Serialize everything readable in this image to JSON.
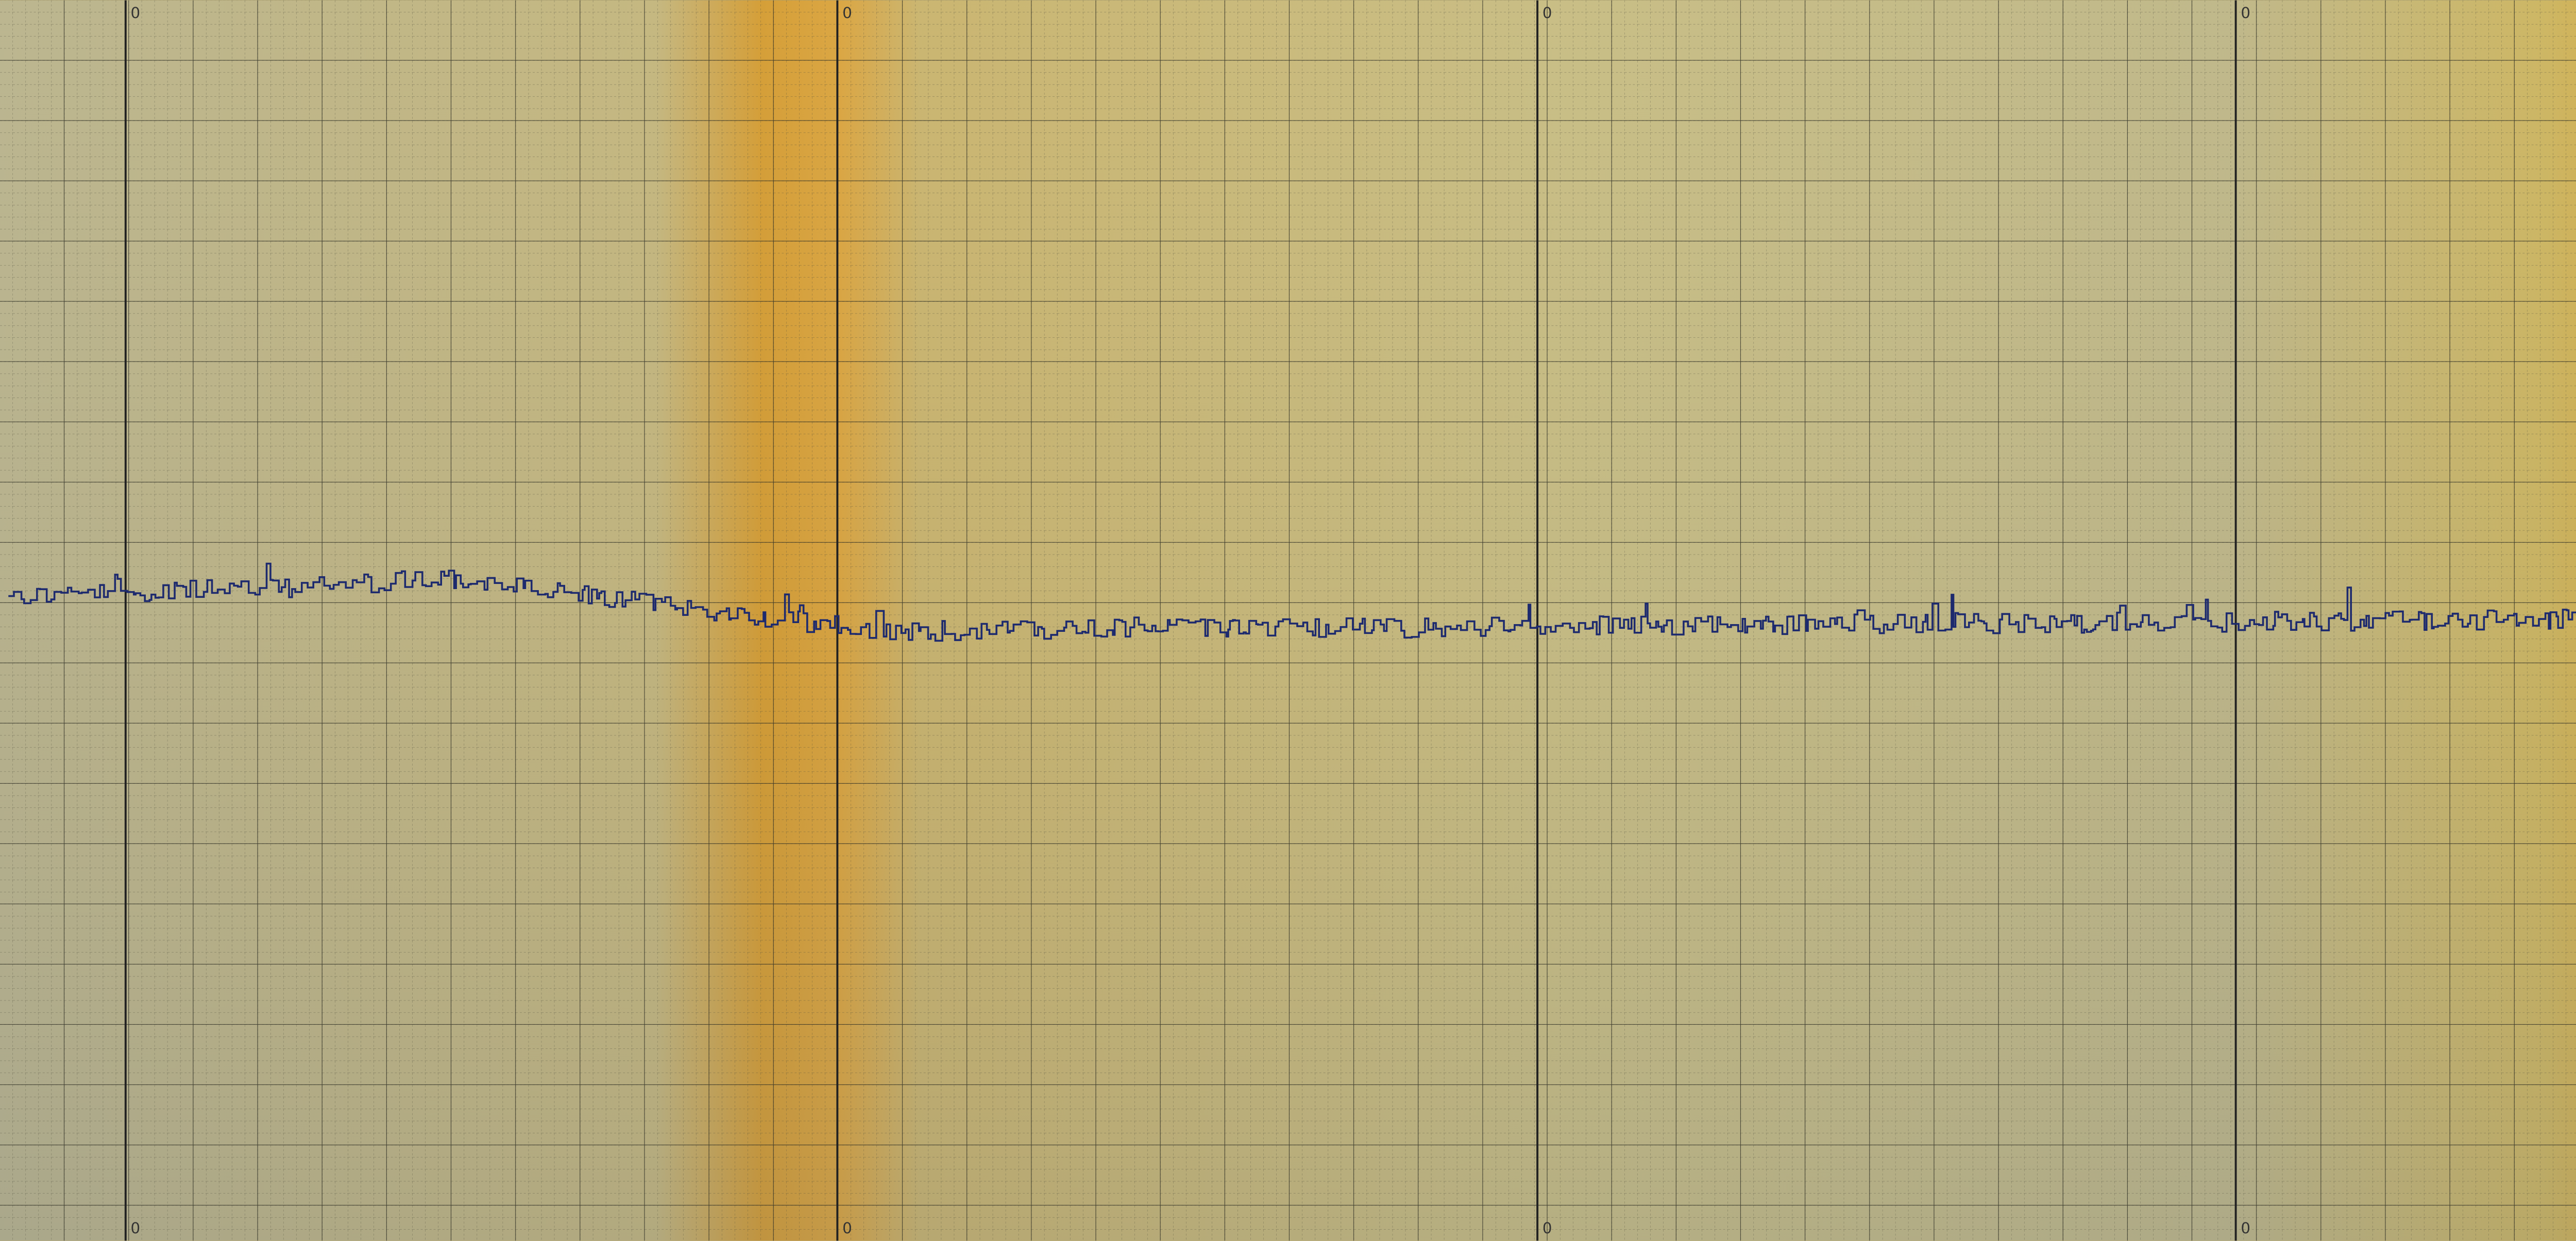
{
  "scale": {
    "top": [
      "0",
      "0",
      "0",
      "0"
    ],
    "bottom": [
      "0",
      "0",
      "0",
      "0"
    ]
  }
}
